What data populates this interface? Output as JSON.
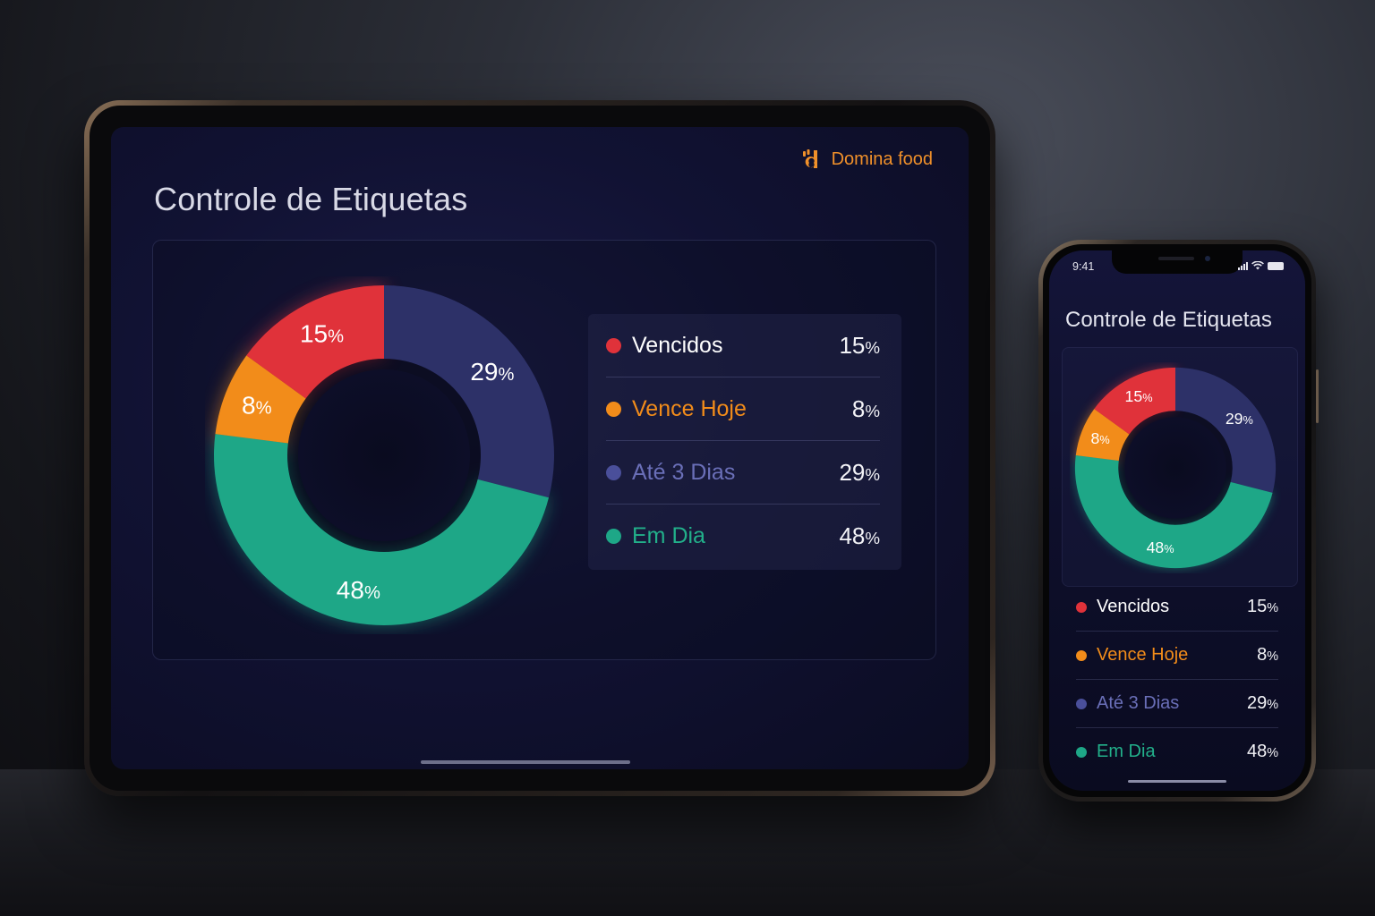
{
  "brand": {
    "name": "Domina food",
    "color": "#f0902a"
  },
  "tablet": {
    "title": "Controle de Etiquetas"
  },
  "phone": {
    "status_time": "9:41",
    "title": "Controle de Etiquetas"
  },
  "chart_data": {
    "type": "pie",
    "donut": true,
    "categories": [
      "Vencidos",
      "Vence Hoje",
      "Até 3 Dias",
      "Em Dia"
    ],
    "values": [
      15,
      8,
      29,
      48
    ],
    "unit": "%",
    "colors": [
      "#e0323a",
      "#f28c1a",
      "#2d3168",
      "#1ea787"
    ],
    "label_colors": [
      "#ffffff",
      "#f28c1a",
      "#6a6fb8",
      "#22b08a"
    ],
    "legend": "right"
  },
  "legend_items": [
    {
      "label": "Vencidos",
      "value": "15",
      "unit": "%"
    },
    {
      "label": "Vence Hoje",
      "value": "8",
      "unit": "%"
    },
    {
      "label": "Até 3 Dias",
      "value": "29",
      "unit": "%"
    },
    {
      "label": "Em Dia",
      "value": "48",
      "unit": "%"
    }
  ]
}
